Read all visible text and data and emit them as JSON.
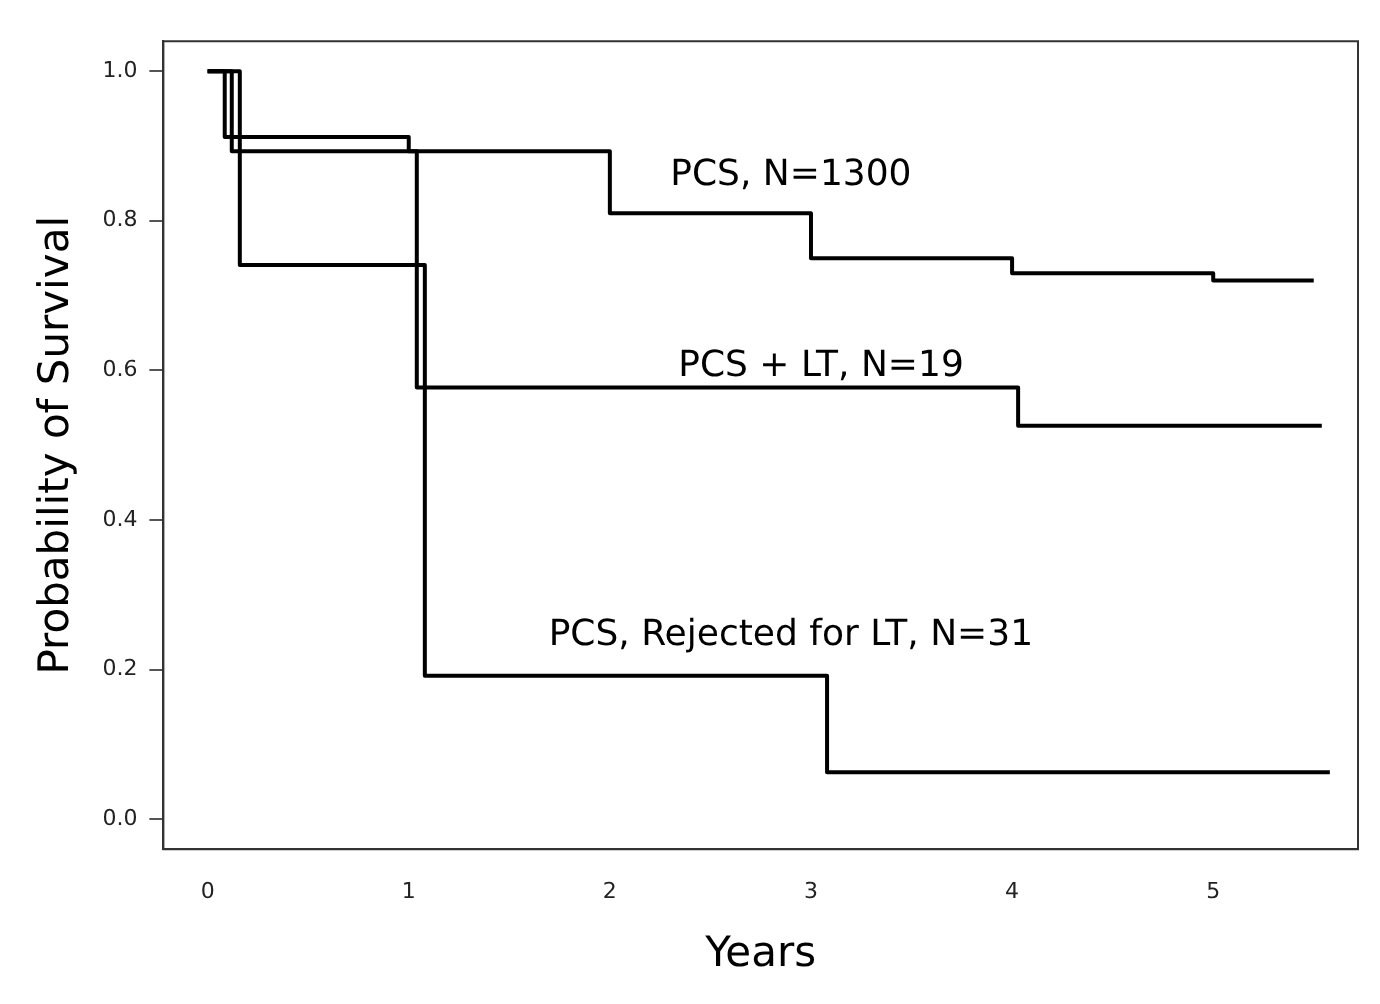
{
  "chart_data": {
    "type": "step",
    "xlabel": "Years",
    "ylabel": "Probability of Survival",
    "xlim": [
      -0.22,
      5.72
    ],
    "ylim": [
      -0.04,
      1.04
    ],
    "xticks": [
      0,
      1,
      2,
      3,
      4,
      5
    ],
    "yticks": [
      {
        "value": 0,
        "label": "0.0"
      },
      {
        "value": 0.2,
        "label": "0.2"
      },
      {
        "value": 0.4,
        "label": "0.4"
      },
      {
        "value": 0.6,
        "label": "0.6"
      },
      {
        "value": 0.8,
        "label": "0.8"
      },
      {
        "value": 1,
        "label": "1.0"
      }
    ],
    "grid": false,
    "legend": false,
    "marker": "none",
    "line_style": "solid",
    "series": [
      {
        "name": "PCS, N=1300",
        "color": "#000000",
        "x": [
          0,
          0.12,
          2.0,
          3.0,
          4.0,
          5.0,
          5.5
        ],
        "values": [
          1.0,
          0.893,
          0.81,
          0.75,
          0.73,
          0.72,
          0.72
        ]
      },
      {
        "name": "PCS + LT, N=19",
        "color": "#000000",
        "x": [
          0,
          0.085,
          1.0,
          1.04,
          4.03,
          5.54
        ],
        "values": [
          1.0,
          0.912,
          0.893,
          0.577,
          0.526,
          0.526
        ]
      },
      {
        "name": "PCS, Rejected for LT, N=31",
        "color": "#000000",
        "x": [
          0,
          0.16,
          1.08,
          3.08,
          5.58
        ],
        "values": [
          1.0,
          0.741,
          0.192,
          0.063,
          0.063
        ]
      }
    ]
  }
}
